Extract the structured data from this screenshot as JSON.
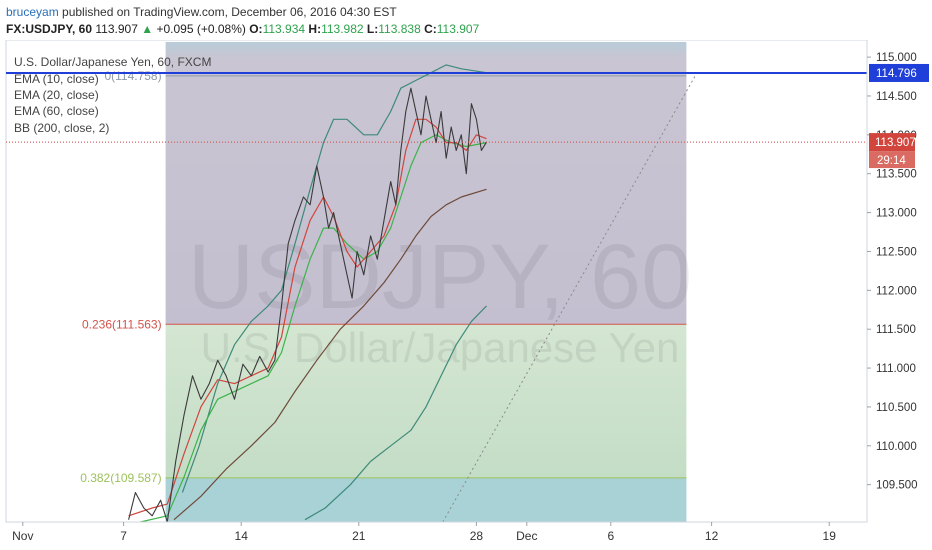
{
  "header": {
    "author": "bruceyam",
    "published_text": "published on TradingView.com, December 06, 2016 04:30 EST",
    "symbol": "FX:USDJPY, 60",
    "price": "113.907",
    "change_arrow": "▲",
    "change": "+0.095 (+0.08%)",
    "o_label": "O:",
    "o_value": "113.934",
    "h_label": "H:",
    "h_value": "113.982",
    "l_label": "L:",
    "l_value": "113.838",
    "c_label": "C:",
    "c_value": "113.907"
  },
  "legend": {
    "title": "U.S. Dollar/Japanese Yen, 60, FXCM",
    "items": [
      "EMA (10, close)",
      "EMA (20, close)",
      "EMA (60, close)",
      "BB (200, close, 2)"
    ]
  },
  "watermark": {
    "symbol": "USDJPY, 60",
    "name": "U.S. Dollar/Japanese Yen"
  },
  "chart_data": {
    "type": "line",
    "ylim": [
      109.02,
      115.22
    ],
    "y_ticks": [
      "115.000",
      "114.500",
      "114.000",
      "113.500",
      "113.000",
      "112.500",
      "112.000",
      "111.500",
      "111.000",
      "110.500",
      "110.000",
      "109.500"
    ],
    "y_tick_values": [
      115.0,
      114.5,
      114.0,
      113.5,
      113.0,
      112.5,
      112.0,
      111.5,
      111.0,
      110.5,
      110.0,
      109.5
    ],
    "x_range_days": [
      31,
      50.3
    ],
    "x_ticks": [
      "Nov",
      "7",
      "14",
      "21",
      "28",
      "Dec",
      "6",
      "12",
      "19"
    ],
    "x_tick_days": [
      32,
      38,
      45,
      52,
      59,
      62,
      67,
      73,
      80
    ],
    "fib_retracement": {
      "day_range": [
        40.5,
        71.5
      ],
      "levels": [
        {
          "label": "0(114.758)",
          "ratio": "0",
          "price": 114.758,
          "color": "#8d9aa8"
        },
        {
          "label": "0.236(111.563)",
          "ratio": "0.236",
          "price": 111.563,
          "color": "#d2534b"
        },
        {
          "label": "0.382(109.587)",
          "ratio": "0.382",
          "price": 109.587,
          "color": "#9dc25c"
        }
      ]
    },
    "horizontal_line": {
      "price": 114.796,
      "label": "114.796",
      "color": "#1f3fd8"
    },
    "trend_line": {
      "from": [
        57.0,
        108.8
      ],
      "to": [
        72.0,
        114.75
      ],
      "color": "#8a8a8a",
      "style": "dotted"
    },
    "last_price": {
      "value": 113.907,
      "label": "113.907",
      "countdown": "29:14",
      "color": "#d2453d"
    },
    "series": [
      {
        "name": "Price",
        "color": "#3a3a3a",
        "points": [
          [
            38.3,
            109.05
          ],
          [
            38.7,
            109.4
          ],
          [
            39.2,
            109.2
          ],
          [
            39.7,
            109.1
          ],
          [
            40.2,
            109.3
          ],
          [
            40.6,
            109.0
          ],
          [
            41.1,
            109.8
          ],
          [
            41.6,
            110.4
          ],
          [
            42.1,
            110.9
          ],
          [
            42.6,
            110.6
          ],
          [
            43.1,
            110.8
          ],
          [
            43.6,
            111.1
          ],
          [
            44.1,
            110.9
          ],
          [
            44.6,
            110.6
          ],
          [
            45.1,
            111.05
          ],
          [
            45.6,
            110.9
          ],
          [
            46.1,
            111.15
          ],
          [
            46.6,
            110.95
          ],
          [
            47.0,
            111.1
          ],
          [
            47.4,
            111.8
          ],
          [
            47.8,
            112.6
          ],
          [
            48.2,
            112.9
          ],
          [
            48.7,
            113.2
          ],
          [
            49.1,
            113.1
          ],
          [
            49.5,
            113.6
          ],
          [
            49.9,
            113.2
          ],
          [
            50.2,
            112.8
          ],
          [
            50.5,
            113.0
          ],
          [
            50.9,
            112.6
          ],
          [
            51.3,
            112.2
          ],
          [
            51.6,
            111.9
          ],
          [
            51.9,
            112.5
          ],
          [
            52.3,
            112.2
          ],
          [
            52.7,
            112.7
          ],
          [
            53.1,
            112.4
          ],
          [
            53.5,
            112.9
          ],
          [
            53.9,
            113.4
          ],
          [
            54.2,
            113.1
          ],
          [
            54.5,
            113.8
          ],
          [
            54.8,
            114.3
          ],
          [
            55.1,
            114.6
          ],
          [
            55.4,
            114.3
          ],
          [
            55.7,
            114.0
          ],
          [
            56.0,
            114.5
          ],
          [
            56.3,
            114.2
          ],
          [
            56.6,
            113.9
          ],
          [
            56.9,
            114.3
          ],
          [
            57.2,
            113.7
          ],
          [
            57.5,
            114.1
          ],
          [
            57.8,
            113.8
          ],
          [
            58.1,
            114.0
          ],
          [
            58.4,
            113.5
          ],
          [
            58.7,
            114.4
          ],
          [
            59.0,
            114.2
          ],
          [
            59.3,
            113.8
          ],
          [
            59.6,
            113.907
          ]
        ]
      },
      {
        "name": "EMA 10",
        "color": "#d0453d",
        "points": [
          [
            38.3,
            109.1
          ],
          [
            39.7,
            109.2
          ],
          [
            40.6,
            109.25
          ],
          [
            41.6,
            109.9
          ],
          [
            42.6,
            110.5
          ],
          [
            43.6,
            110.85
          ],
          [
            44.6,
            110.8
          ],
          [
            45.6,
            110.9
          ],
          [
            46.6,
            111.0
          ],
          [
            47.4,
            111.4
          ],
          [
            48.2,
            112.3
          ],
          [
            49.1,
            112.9
          ],
          [
            49.9,
            113.2
          ],
          [
            50.5,
            112.95
          ],
          [
            51.3,
            112.5
          ],
          [
            51.9,
            112.3
          ],
          [
            52.7,
            112.5
          ],
          [
            53.5,
            112.7
          ],
          [
            54.2,
            113.1
          ],
          [
            54.8,
            113.8
          ],
          [
            55.4,
            114.2
          ],
          [
            56.0,
            114.2
          ],
          [
            56.6,
            114.1
          ],
          [
            57.2,
            113.9
          ],
          [
            57.8,
            113.9
          ],
          [
            58.4,
            113.8
          ],
          [
            59.0,
            114.0
          ],
          [
            59.6,
            113.95
          ]
        ]
      },
      {
        "name": "EMA 20",
        "color": "#3cb34a",
        "points": [
          [
            39.0,
            109.0
          ],
          [
            40.6,
            109.1
          ],
          [
            41.6,
            109.6
          ],
          [
            42.6,
            110.2
          ],
          [
            43.6,
            110.6
          ],
          [
            44.6,
            110.7
          ],
          [
            45.6,
            110.8
          ],
          [
            46.6,
            110.9
          ],
          [
            47.4,
            111.2
          ],
          [
            48.2,
            111.8
          ],
          [
            49.1,
            112.4
          ],
          [
            49.9,
            112.8
          ],
          [
            50.5,
            112.8
          ],
          [
            51.3,
            112.6
          ],
          [
            52.3,
            112.4
          ],
          [
            53.1,
            112.5
          ],
          [
            53.9,
            112.8
          ],
          [
            54.5,
            113.2
          ],
          [
            55.1,
            113.6
          ],
          [
            55.7,
            113.9
          ],
          [
            56.6,
            114.0
          ],
          [
            57.5,
            113.9
          ],
          [
            58.4,
            113.85
          ],
          [
            59.6,
            113.9
          ]
        ]
      },
      {
        "name": "EMA 60",
        "color": "#6e4a3a",
        "points": [
          [
            41.0,
            109.05
          ],
          [
            42.6,
            109.35
          ],
          [
            44.1,
            109.7
          ],
          [
            45.6,
            110.0
          ],
          [
            47.0,
            110.3
          ],
          [
            48.2,
            110.7
          ],
          [
            49.5,
            111.1
          ],
          [
            50.9,
            111.5
          ],
          [
            52.3,
            111.8
          ],
          [
            53.5,
            112.1
          ],
          [
            54.5,
            112.4
          ],
          [
            55.4,
            112.7
          ],
          [
            56.3,
            112.95
          ],
          [
            57.2,
            113.1
          ],
          [
            58.1,
            113.2
          ],
          [
            59.6,
            113.3
          ]
        ]
      },
      {
        "name": "BB upper",
        "color": "#3e8a7a",
        "points": [
          [
            41.5,
            109.4
          ],
          [
            42.5,
            110.0
          ],
          [
            43.6,
            110.8
          ],
          [
            44.6,
            111.3
          ],
          [
            45.6,
            111.6
          ],
          [
            46.6,
            111.8
          ],
          [
            47.4,
            112.0
          ],
          [
            48.2,
            112.6
          ],
          [
            49.1,
            113.3
          ],
          [
            49.9,
            113.9
          ],
          [
            50.5,
            114.2
          ],
          [
            51.3,
            114.2
          ],
          [
            52.3,
            114.0
          ],
          [
            53.1,
            114.0
          ],
          [
            53.9,
            114.3
          ],
          [
            54.5,
            114.6
          ],
          [
            55.4,
            114.7
          ],
          [
            56.3,
            114.8
          ],
          [
            57.2,
            114.9
          ],
          [
            58.1,
            114.85
          ],
          [
            59.6,
            114.8
          ]
        ]
      },
      {
        "name": "BB lower",
        "color": "#3e8a7a",
        "points": [
          [
            48.8,
            109.05
          ],
          [
            50.0,
            109.2
          ],
          [
            51.5,
            109.5
          ],
          [
            52.7,
            109.8
          ],
          [
            53.9,
            110.0
          ],
          [
            55.1,
            110.2
          ],
          [
            56.0,
            110.5
          ],
          [
            56.9,
            110.9
          ],
          [
            57.8,
            111.3
          ],
          [
            58.7,
            111.6
          ],
          [
            59.6,
            111.8
          ]
        ]
      }
    ]
  }
}
